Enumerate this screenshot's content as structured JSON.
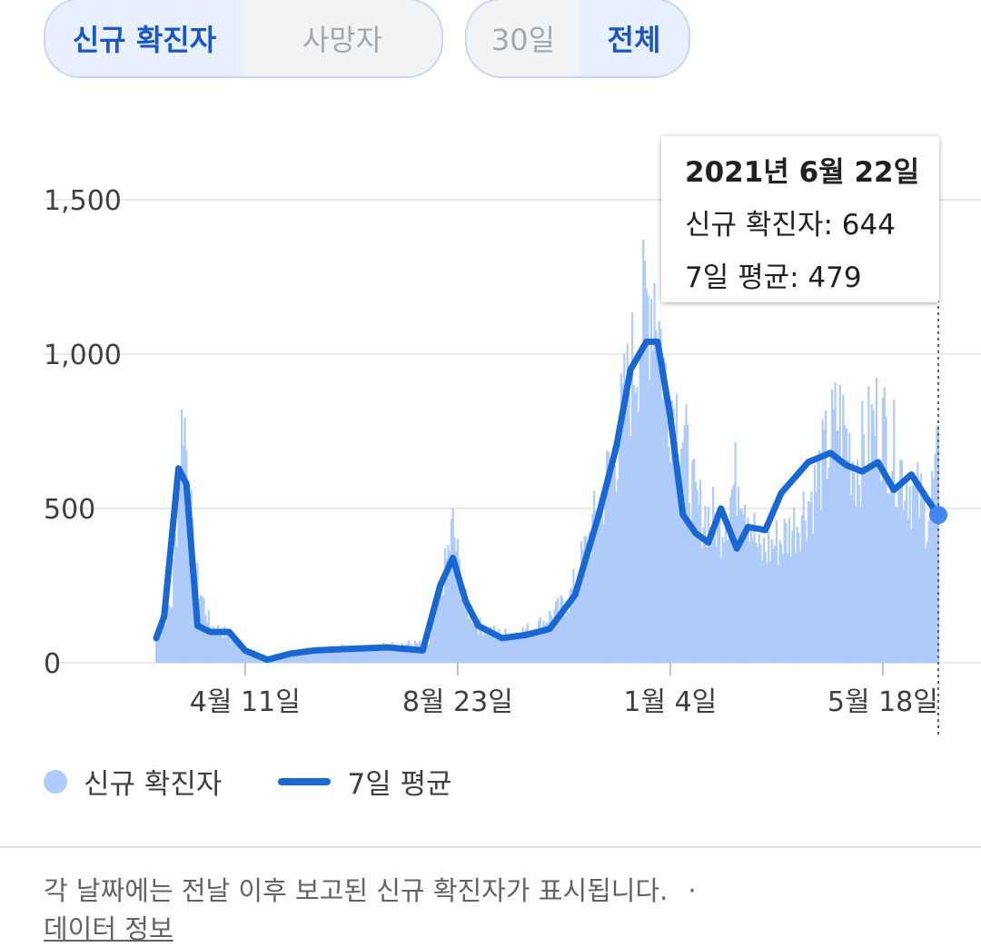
{
  "toggles": {
    "metric": [
      {
        "label": "신규 확진자",
        "active": true
      },
      {
        "label": "사망자",
        "active": false
      }
    ],
    "range": [
      {
        "label": "30일",
        "active": false
      },
      {
        "label": "전체",
        "active": true
      }
    ]
  },
  "tooltip": {
    "date": "2021년 6월 22일",
    "new_cases": "신규 확진자: 644",
    "avg": "7일 평균: 479"
  },
  "legend": {
    "bars_label": "신규 확진자",
    "line_label": "7일 평균"
  },
  "footnote": {
    "text": "각 날짜에는 전날 이후 보고된 신규 확진자가 표시됩니다.",
    "separator": "·",
    "link": "데이터 정보"
  },
  "colors": {
    "bar": "#aecbfa",
    "line": "#1967d2",
    "grid": "#e8eaed",
    "accent": "#1a56c4"
  },
  "chart_data": {
    "type": "bar",
    "ylim": [
      0,
      1600
    ],
    "yticks": [
      "0",
      "500",
      "1,000",
      "1,500"
    ],
    "xticks": [
      {
        "label": "4월 11일",
        "x": "2020-04-11"
      },
      {
        "label": "8월 23일",
        "x": "2020-08-23"
      },
      {
        "label": "1월 4일",
        "x": "2021-01-04"
      },
      {
        "label": "5월 18일",
        "x": "2021-05-18"
      }
    ],
    "grid": true,
    "legend_position": "bottom",
    "series": [
      {
        "name": "신규 확진자",
        "type": "bar",
        "x": [
          "2020-02-15",
          "2020-02-25",
          "2020-03-03",
          "2020-03-10",
          "2020-03-20",
          "2020-04-01",
          "2020-04-15",
          "2020-05-01",
          "2020-05-20",
          "2020-06-10",
          "2020-07-01",
          "2020-07-20",
          "2020-08-05",
          "2020-08-15",
          "2020-08-20",
          "2020-08-27",
          "2020-09-05",
          "2020-09-20",
          "2020-10-10",
          "2020-11-01",
          "2020-11-20",
          "2020-12-01",
          "2020-12-15",
          "2020-12-25",
          "2021-01-01",
          "2021-01-10",
          "2021-01-20",
          "2021-02-05",
          "2021-02-17",
          "2021-03-01",
          "2021-03-20",
          "2021-04-05",
          "2021-04-20",
          "2021-05-01",
          "2021-05-15",
          "2021-06-01",
          "2021-06-15",
          "2021-06-22"
        ],
        "values": [
          90,
          200,
          850,
          300,
          120,
          90,
          30,
          10,
          40,
          50,
          50,
          60,
          60,
          300,
          440,
          200,
          120,
          90,
          110,
          200,
          500,
          700,
          1050,
          1240,
          900,
          800,
          500,
          450,
          630,
          350,
          420,
          560,
          800,
          640,
          800,
          600,
          480,
          644
        ]
      },
      {
        "name": "7일 평균",
        "type": "line",
        "x": [
          "2020-02-15",
          "2020-02-20",
          "2020-02-29",
          "2020-03-05",
          "2020-03-12",
          "2020-03-20",
          "2020-04-01",
          "2020-04-11",
          "2020-04-25",
          "2020-05-10",
          "2020-05-25",
          "2020-06-15",
          "2020-07-10",
          "2020-08-01",
          "2020-08-12",
          "2020-08-20",
          "2020-08-28",
          "2020-09-05",
          "2020-09-20",
          "2020-10-05",
          "2020-10-20",
          "2020-11-05",
          "2020-11-20",
          "2020-12-01",
          "2020-12-10",
          "2020-12-20",
          "2020-12-27",
          "2021-01-04",
          "2021-01-12",
          "2021-01-20",
          "2021-01-28",
          "2021-02-05",
          "2021-02-15",
          "2021-02-22",
          "2021-03-05",
          "2021-03-15",
          "2021-04-01",
          "2021-04-15",
          "2021-04-25",
          "2021-05-05",
          "2021-05-15",
          "2021-05-25",
          "2021-06-05",
          "2021-06-15",
          "2021-06-22"
        ],
        "values": [
          80,
          150,
          630,
          580,
          120,
          100,
          100,
          40,
          10,
          30,
          40,
          45,
          50,
          40,
          250,
          340,
          200,
          120,
          80,
          90,
          110,
          220,
          480,
          700,
          950,
          1040,
          1040,
          800,
          480,
          420,
          390,
          500,
          370,
          440,
          430,
          550,
          650,
          680,
          640,
          620,
          650,
          560,
          610,
          530,
          479
        ]
      }
    ]
  }
}
